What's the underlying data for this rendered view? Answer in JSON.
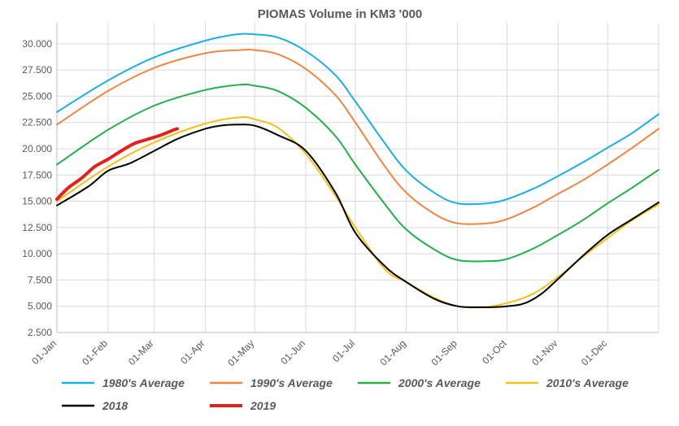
{
  "chart_data": {
    "type": "line",
    "title": "PIOMAS Volume in KM3 '000",
    "xlabel": "",
    "ylabel": "",
    "ylim": [
      2.5,
      32.0
    ],
    "yticks": [
      2.5,
      5.0,
      7.5,
      10.0,
      12.5,
      15.0,
      17.5,
      20.0,
      22.5,
      25.0,
      27.5,
      30.0
    ],
    "ytick_labels": [
      "2.500",
      "5.000",
      "7.500",
      "10.000",
      "12.500",
      "15.000",
      "17.500",
      "20.000",
      "22.500",
      "25.000",
      "27.500",
      "30.000"
    ],
    "x_day_range": [
      1,
      366
    ],
    "x_ticks": [
      {
        "day": 1,
        "label": "01-Jan"
      },
      {
        "day": 32,
        "label": "01-Feb"
      },
      {
        "day": 60,
        "label": "01-Mar"
      },
      {
        "day": 91,
        "label": "01-Apr"
      },
      {
        "day": 121,
        "label": "01-May"
      },
      {
        "day": 152,
        "label": "01-Jun"
      },
      {
        "day": 182,
        "label": "01-Jul"
      },
      {
        "day": 213,
        "label": "01-Aug"
      },
      {
        "day": 244,
        "label": "01-Sep"
      },
      {
        "day": 274,
        "label": "01-Oct"
      },
      {
        "day": 305,
        "label": "01-Nov"
      },
      {
        "day": 335,
        "label": "01-Dec"
      }
    ],
    "grid": true,
    "legend_position": "bottom",
    "series": [
      {
        "name": "1980's Average",
        "color": "#1aafe6",
        "width": 2,
        "x": [
          1,
          32,
          60,
          91,
          110,
          121,
          135,
          152,
          170,
          182,
          200,
          213,
          230,
          244,
          262,
          274,
          290,
          305,
          320,
          335,
          350,
          366
        ],
        "y": [
          23.5,
          26.5,
          28.7,
          30.3,
          30.9,
          30.9,
          30.6,
          29.3,
          27.0,
          24.5,
          20.5,
          17.9,
          15.8,
          14.8,
          14.8,
          15.2,
          16.2,
          17.4,
          18.7,
          20.1,
          21.5,
          23.3
        ]
      },
      {
        "name": "1990's Average",
        "color": "#f08640",
        "width": 2,
        "x": [
          1,
          32,
          60,
          91,
          112,
          121,
          135,
          152,
          170,
          182,
          200,
          213,
          230,
          244,
          262,
          274,
          290,
          305,
          320,
          335,
          350,
          366
        ],
        "y": [
          22.3,
          25.5,
          27.7,
          29.1,
          29.4,
          29.4,
          29.0,
          27.6,
          25.1,
          22.5,
          18.3,
          15.8,
          13.8,
          12.9,
          12.9,
          13.3,
          14.4,
          15.7,
          17.0,
          18.5,
          20.1,
          21.9
        ]
      },
      {
        "name": "2000's Average",
        "color": "#22b04b",
        "width": 2,
        "x": [
          1,
          32,
          60,
          91,
          112,
          121,
          135,
          152,
          170,
          182,
          200,
          213,
          230,
          244,
          262,
          274,
          290,
          305,
          320,
          335,
          350,
          366
        ],
        "y": [
          18.5,
          21.8,
          24.1,
          25.6,
          26.1,
          26.0,
          25.5,
          23.9,
          21.2,
          18.5,
          14.7,
          12.3,
          10.4,
          9.4,
          9.3,
          9.5,
          10.5,
          11.8,
          13.2,
          14.8,
          16.3,
          18.0
        ]
      },
      {
        "name": "2010's Average",
        "color": "#f5c118",
        "width": 2,
        "x": [
          1,
          32,
          60,
          91,
          112,
          121,
          135,
          152,
          170,
          182,
          200,
          213,
          230,
          244,
          258,
          274,
          290,
          305,
          320,
          335,
          350,
          366
        ],
        "y": [
          15.0,
          18.3,
          20.6,
          22.4,
          23.0,
          22.8,
          22.0,
          19.5,
          15.5,
          12.5,
          8.5,
          7.3,
          5.8,
          5.0,
          4.9,
          5.3,
          6.2,
          7.8,
          9.7,
          11.5,
          13.2,
          14.7
        ]
      },
      {
        "name": "2018",
        "color": "#000000",
        "width": 2,
        "x": [
          1,
          20,
          32,
          45,
          60,
          75,
          91,
          100,
          110,
          121,
          135,
          152,
          170,
          182,
          200,
          213,
          230,
          244,
          258,
          274,
          285,
          295,
          305,
          320,
          335,
          350,
          366
        ],
        "y": [
          14.6,
          16.4,
          17.9,
          18.6,
          19.8,
          21.0,
          21.9,
          22.2,
          22.3,
          22.2,
          21.3,
          19.8,
          15.8,
          12.0,
          8.8,
          7.3,
          5.7,
          5.0,
          4.9,
          5.0,
          5.3,
          6.2,
          7.6,
          9.8,
          11.8,
          13.3,
          14.9
        ]
      },
      {
        "name": "2019",
        "color": "#e3211c",
        "width": 4,
        "x": [
          1,
          8,
          16,
          24,
          32,
          40,
          48,
          56,
          64,
          72,
          74
        ],
        "y": [
          15.2,
          16.3,
          17.2,
          18.3,
          19.0,
          19.8,
          20.5,
          20.9,
          21.3,
          21.8,
          21.9
        ]
      }
    ]
  }
}
